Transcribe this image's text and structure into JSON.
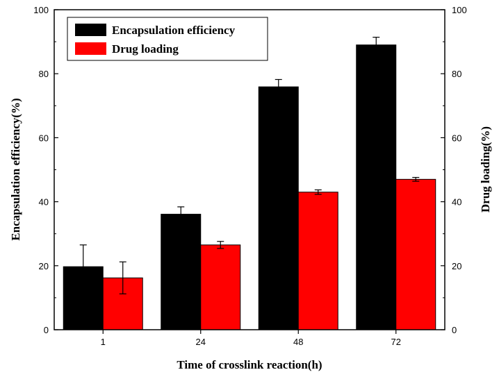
{
  "chart_data": {
    "type": "bar",
    "categories": [
      "1",
      "24",
      "48",
      "72"
    ],
    "xlabel": "Time of crosslink reaction(h)",
    "ylabel": "Encapsulation efficiency(%)",
    "y2label": "Drug loading(%)",
    "ylim": [
      0,
      100
    ],
    "y2lim": [
      0,
      100
    ],
    "yticks": [
      0,
      20,
      40,
      60,
      80,
      100
    ],
    "legend_position": "top-left",
    "series": [
      {
        "name": "Encapsulation efficiency",
        "color": "#000000",
        "values": [
          19.7,
          36.1,
          75.9,
          89.0
        ],
        "errors": [
          6.8,
          2.3,
          2.3,
          2.4
        ]
      },
      {
        "name": "Drug loading",
        "color": "#ff0000",
        "values": [
          16.2,
          26.5,
          43.0,
          47.0
        ],
        "errors": [
          5.0,
          1.1,
          0.7,
          0.6
        ]
      }
    ]
  }
}
